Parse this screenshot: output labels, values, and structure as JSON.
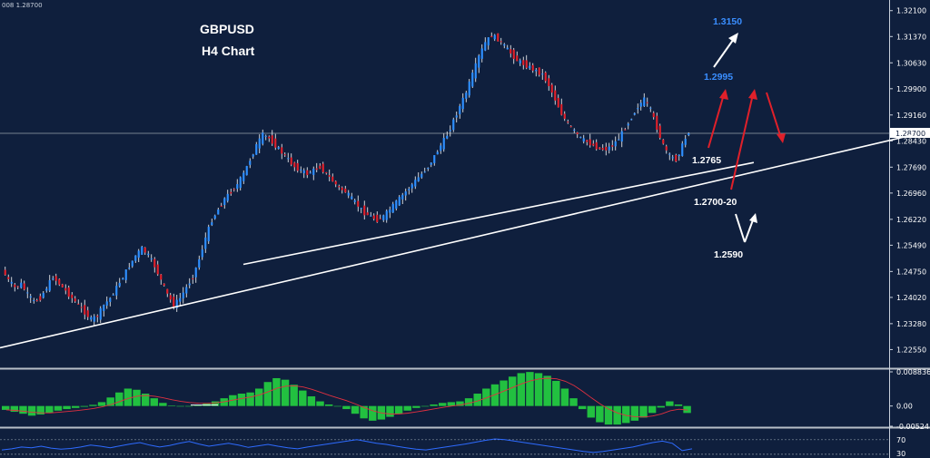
{
  "chart_data": {
    "type": "candlestick",
    "symbol": "GBPUSD",
    "timeframe": "H4 Chart",
    "header_text": "008 1.28700",
    "ylim": [
      1.2205,
      1.324
    ],
    "y_ticks": [
      "1.32100",
      "1.31370",
      "1.30630",
      "1.29900",
      "1.29160",
      "1.28430",
      "1.27690",
      "1.26960",
      "1.26220",
      "1.25490",
      "1.24750",
      "1.24020",
      "1.23280",
      "1.22550"
    ],
    "current_price": "1.28700",
    "price_path": [
      1.248,
      1.245,
      1.243,
      1.244,
      1.241,
      1.239,
      1.24,
      1.243,
      1.246,
      1.244,
      1.242,
      1.24,
      1.238,
      1.236,
      1.234,
      1.235,
      1.238,
      1.24,
      1.243,
      1.246,
      1.249,
      1.252,
      1.254,
      1.252,
      1.249,
      1.245,
      1.241,
      1.238,
      1.24,
      1.243,
      1.246,
      1.251,
      1.257,
      1.262,
      1.265,
      1.268,
      1.27,
      1.272,
      1.275,
      1.279,
      1.283,
      1.286,
      1.285,
      1.283,
      1.281,
      1.279,
      1.277,
      1.276,
      1.275,
      1.276,
      1.277,
      1.275,
      1.273,
      1.271,
      1.27,
      1.268,
      1.266,
      1.264,
      1.263,
      1.262,
      1.263,
      1.265,
      1.267,
      1.269,
      1.271,
      1.273,
      1.275,
      1.277,
      1.28,
      1.283,
      1.286,
      1.29,
      1.294,
      1.298,
      1.303,
      1.308,
      1.312,
      1.314,
      1.313,
      1.311,
      1.309,
      1.307,
      1.306,
      1.305,
      1.304,
      1.303,
      1.3,
      1.296,
      1.292,
      1.289,
      1.287,
      1.285,
      1.284,
      1.283,
      1.282,
      1.282,
      1.283,
      1.285,
      1.288,
      1.291,
      1.294,
      1.296,
      1.293,
      1.288,
      1.283,
      1.28,
      1.279,
      1.283,
      1.287
    ],
    "trendlines": [
      {
        "from": [
          0.2617,
          1.2495
        ],
        "to": [
          0.8105,
          1.2782
        ]
      },
      {
        "from": [
          0.0,
          1.226
        ],
        "to": [
          0.9805,
          1.2859
        ]
      }
    ],
    "annotations": [
      {
        "text": "1.3150",
        "color": "#3a8eff"
      },
      {
        "text": "1.2995",
        "color": "#3a8eff"
      },
      {
        "text": "1.2765",
        "color": "#ffffff"
      },
      {
        "text": "1.2700-20",
        "color": "#ffffff"
      },
      {
        "text": "1.2590",
        "color": "#ffffff"
      }
    ],
    "macd": {
      "y_ticks": [
        "0.008836",
        "0.00",
        "-0.00524"
      ],
      "values": [
        -0.001,
        -0.0015,
        -0.002,
        -0.0025,
        -0.0022,
        -0.0018,
        -0.0012,
        -0.0008,
        -0.0005,
        -0.0002,
        0.0003,
        0.001,
        0.0022,
        0.0035,
        0.0045,
        0.0042,
        0.0032,
        0.002,
        0.0008,
        0.0001,
        0.0,
        0.0,
        0.0002,
        0.0006,
        0.0012,
        0.002,
        0.0028,
        0.0032,
        0.0035,
        0.0045,
        0.0062,
        0.0072,
        0.0068,
        0.0055,
        0.004,
        0.0025,
        0.0012,
        0.0004,
        0.0,
        -0.0008,
        -0.002,
        -0.0032,
        -0.0038,
        -0.0035,
        -0.0028,
        -0.002,
        -0.0012,
        -0.0005,
        0.0,
        0.0004,
        0.0008,
        0.001,
        0.0012,
        0.002,
        0.0032,
        0.0045,
        0.0056,
        0.0066,
        0.0076,
        0.0085,
        0.0088,
        0.0085,
        0.0078,
        0.0065,
        0.0045,
        0.002,
        -0.0008,
        -0.003,
        -0.0042,
        -0.0048,
        -0.0048,
        -0.0044,
        -0.0038,
        -0.003,
        -0.0018,
        -0.0004,
        0.0012,
        0.0004,
        -0.0018
      ]
    },
    "rsi": {
      "y_ticks": [
        "70",
        "30"
      ],
      "values": [
        42,
        45,
        50,
        48,
        52,
        47,
        44,
        46,
        50,
        55,
        52,
        48,
        53,
        58,
        62,
        55,
        50,
        54,
        60,
        65,
        58,
        52,
        56,
        60,
        55,
        49,
        53,
        57,
        52,
        48,
        45,
        50,
        54,
        58,
        62,
        66,
        70,
        65,
        60,
        57,
        52,
        48,
        44,
        42,
        46,
        50,
        54,
        58,
        63,
        68,
        72,
        70,
        66,
        62,
        58,
        54,
        50,
        46,
        42,
        38,
        35,
        38,
        42,
        46,
        50,
        56,
        62,
        66,
        60,
        40,
        45
      ]
    }
  }
}
